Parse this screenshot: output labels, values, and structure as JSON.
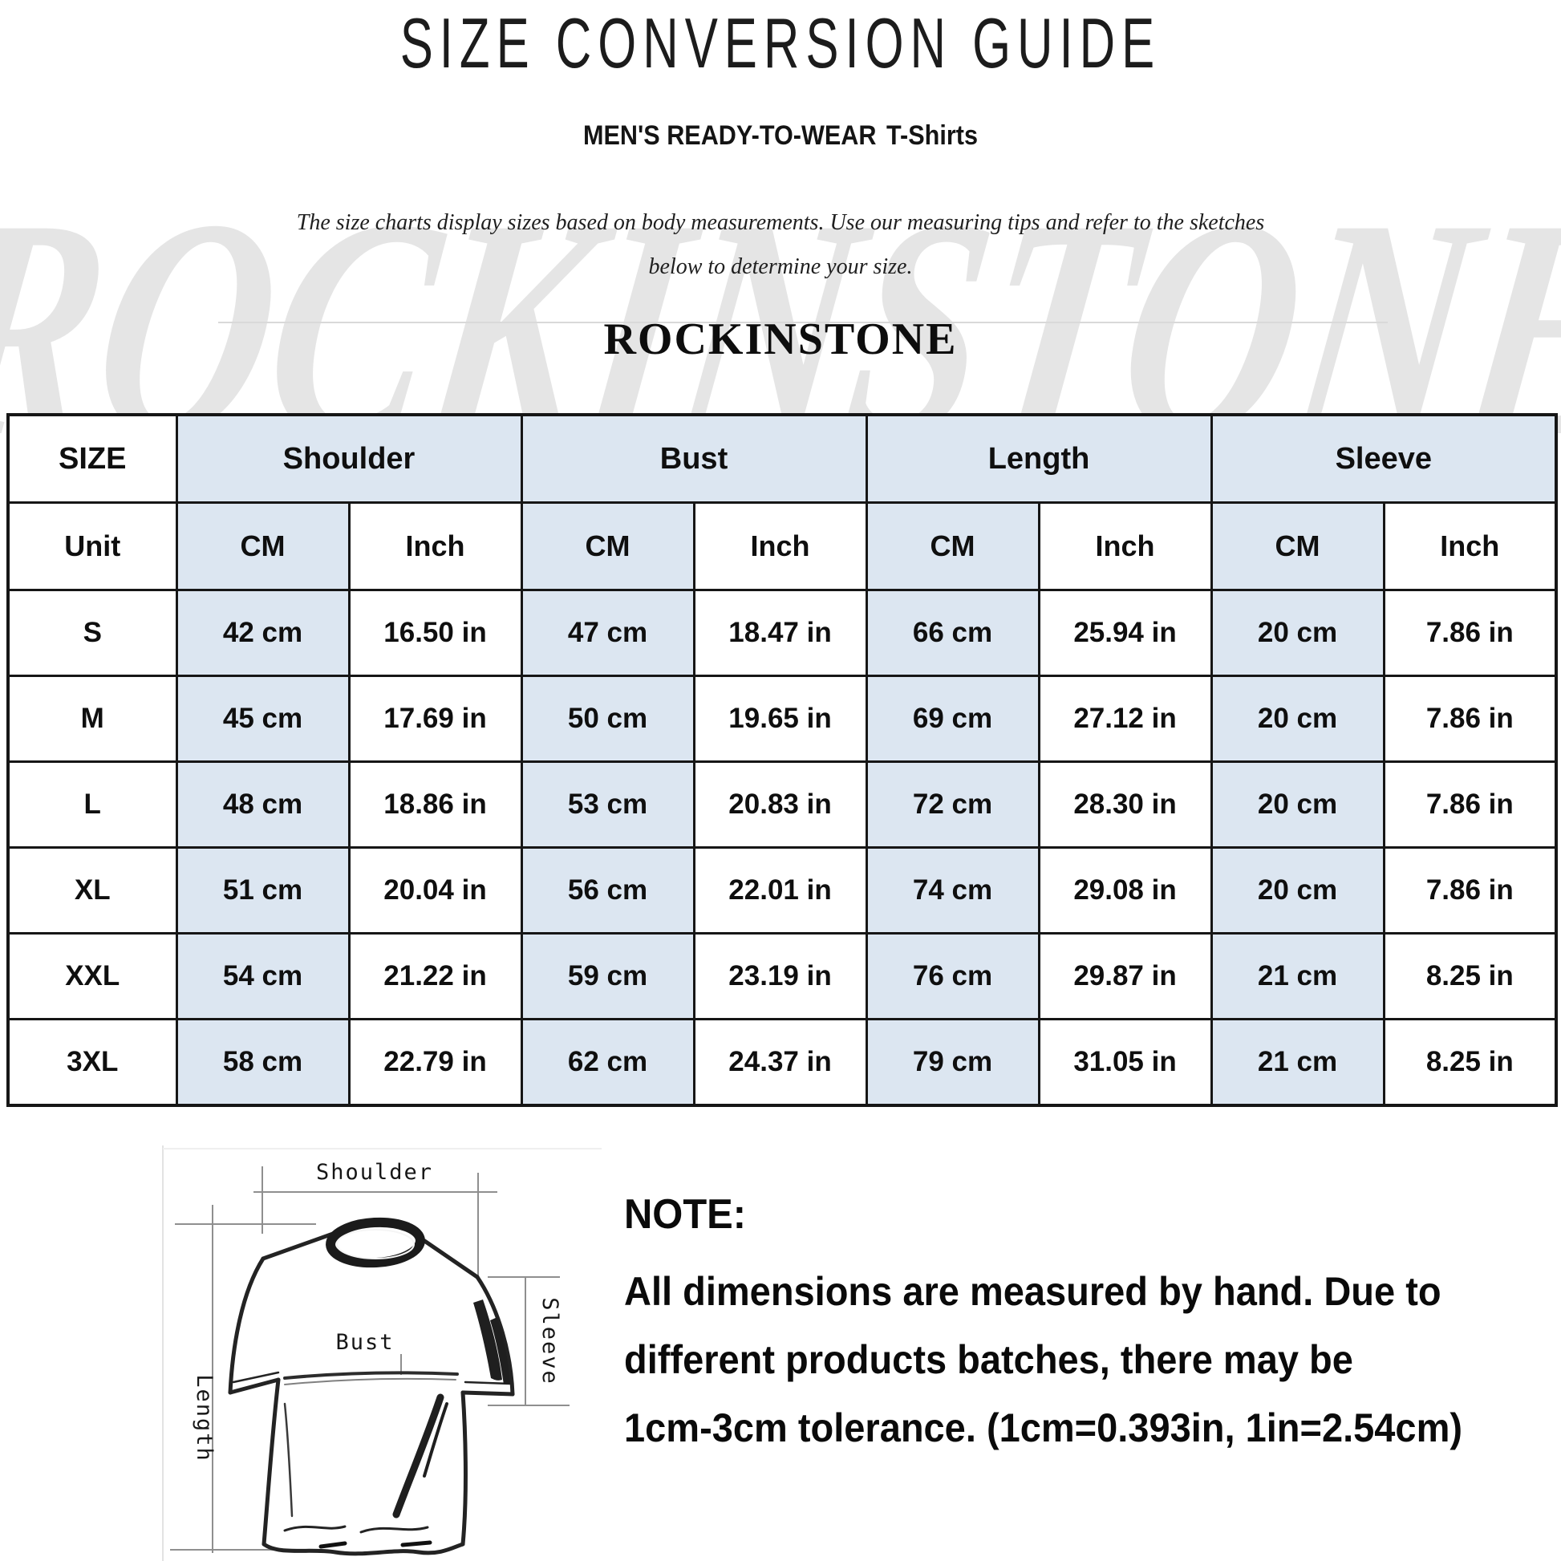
{
  "page": {
    "title": "SIZE CONVERSION GUIDE",
    "subtitle_caps": "MEN'S READY-TO-WEAR",
    "subtitle_product": "T-Shirts",
    "intro_line1": "The size charts display sizes based on body measurements. Use our measuring tips and refer to the sketches",
    "intro_line2": "below to determine your size.",
    "brand": "ROCKINSTONE",
    "watermark": "ROCKINSTONE"
  },
  "size_table": {
    "corner_label": "SIZE",
    "unit_label": "Unit",
    "unit_cm": "CM",
    "unit_inch": "Inch",
    "groups": [
      "Shoulder",
      "Bust",
      "Length",
      "Sleeve"
    ],
    "rows": [
      {
        "size": "S",
        "values": [
          "42 cm",
          "16.50 in",
          "47 cm",
          "18.47 in",
          "66 cm",
          "25.94 in",
          "20 cm",
          "7.86 in"
        ]
      },
      {
        "size": "M",
        "values": [
          "45 cm",
          "17.69 in",
          "50 cm",
          "19.65 in",
          "69 cm",
          "27.12 in",
          "20 cm",
          "7.86 in"
        ]
      },
      {
        "size": "L",
        "values": [
          "48 cm",
          "18.86 in",
          "53 cm",
          "20.83 in",
          "72 cm",
          "28.30 in",
          "20 cm",
          "7.86 in"
        ]
      },
      {
        "size": "XL",
        "values": [
          "51 cm",
          "20.04 in",
          "56 cm",
          "22.01 in",
          "74 cm",
          "29.08 in",
          "20 cm",
          "7.86 in"
        ]
      },
      {
        "size": "XXL",
        "values": [
          "54 cm",
          "21.22 in",
          "59 cm",
          "23.19 in",
          "76 cm",
          "29.87 in",
          "21 cm",
          "8.25 in"
        ]
      },
      {
        "size": "3XL",
        "values": [
          "58 cm",
          "22.79 in",
          "62 cm",
          "24.37 in",
          "79 cm",
          "31.05 in",
          "21 cm",
          "8.25 in"
        ]
      }
    ]
  },
  "sketch": {
    "labels": {
      "shoulder": "Shoulder",
      "bust": "Bust",
      "length": "Length",
      "sleeve": "Sleeve"
    }
  },
  "note": {
    "heading": "NOTE:",
    "lines": [
      "All dimensions are measured by hand. Due to",
      "different products batches, there may be",
      "1cm-3cm tolerance. (1cm=0.393in, 1in=2.54cm)"
    ]
  },
  "colors": {
    "cell_blue": "#dce6f1",
    "table_border": "#161616",
    "watermark_gray": "#e5e5e5",
    "text_black": "#111111"
  }
}
